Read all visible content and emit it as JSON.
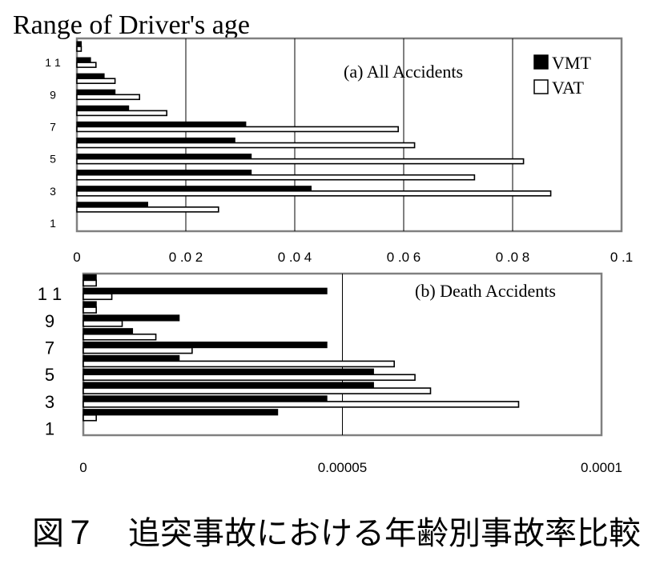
{
  "title": "Range of Driver's age",
  "caption": "図７　追突事故における年齢別事故率比較",
  "colors": {
    "vmt": "#000000",
    "vat": "#ffffff",
    "axis": "#808080",
    "grid": "#000000",
    "text": "#000000"
  },
  "chart_data": [
    {
      "type": "bar",
      "orientation": "horizontal",
      "panel_label": "(a) All Accidents",
      "categories": [
        "1",
        "2",
        "3",
        "4",
        "5",
        "6",
        "7",
        "8",
        "9",
        "10",
        "11",
        "12"
      ],
      "category_labels": [
        "1",
        "",
        "3",
        "",
        "5",
        "",
        "7",
        "",
        "9",
        "",
        "1 1",
        ""
      ],
      "series": [
        {
          "name": "VMT",
          "values": [
            0.0,
            0.013,
            0.043,
            0.032,
            0.032,
            0.029,
            0.031,
            0.0095,
            0.007,
            0.005,
            0.0025,
            0.0008
          ]
        },
        {
          "name": "VAT",
          "values": [
            0.0,
            0.026,
            0.087,
            0.073,
            0.082,
            0.062,
            0.059,
            0.0165,
            0.0115,
            0.007,
            0.0035,
            0.0008
          ]
        }
      ],
      "xlim": [
        0,
        0.1
      ],
      "xticks": [
        0,
        0.02,
        0.04,
        0.06,
        0.08,
        0.1
      ],
      "xtick_labels": [
        "0",
        "0 .0 2",
        "0 .0 4",
        "0 .0 6",
        "0 .0 8",
        "0 .1"
      ],
      "legend": {
        "position": "top-right",
        "entries": [
          "VMT",
          "VAT"
        ]
      },
      "grid": "vertical"
    },
    {
      "type": "bar",
      "orientation": "horizontal",
      "panel_label": "(b) Death Accidents",
      "categories": [
        "1",
        "2",
        "3",
        "4",
        "5",
        "6",
        "7",
        "8",
        "9",
        "10",
        "11",
        "12"
      ],
      "category_labels": [
        "1",
        "",
        "3",
        "",
        "5",
        "",
        "7",
        "",
        "9",
        "",
        "1 1",
        ""
      ],
      "series": [
        {
          "name": "VMT",
          "values": [
            0.0,
            3.75e-05,
            4.7e-05,
            5.6e-05,
            5.6e-05,
            1.85e-05,
            4.7e-05,
            9.5e-06,
            1.85e-05,
            2.5e-06,
            4.7e-05,
            2.5e-06
          ]
        },
        {
          "name": "VAT",
          "values": [
            0.0,
            2.5e-06,
            8.4e-05,
            6.7e-05,
            6.4e-05,
            6e-05,
            2.1e-05,
            1.4e-05,
            7.5e-06,
            2.5e-06,
            5.5e-06,
            2.5e-06
          ]
        }
      ],
      "xlim": [
        0,
        0.0001
      ],
      "xticks": [
        0,
        5e-05,
        0.0001
      ],
      "xtick_labels": [
        "0",
        "0.00005",
        "0.0001"
      ],
      "grid": "vertical"
    }
  ]
}
